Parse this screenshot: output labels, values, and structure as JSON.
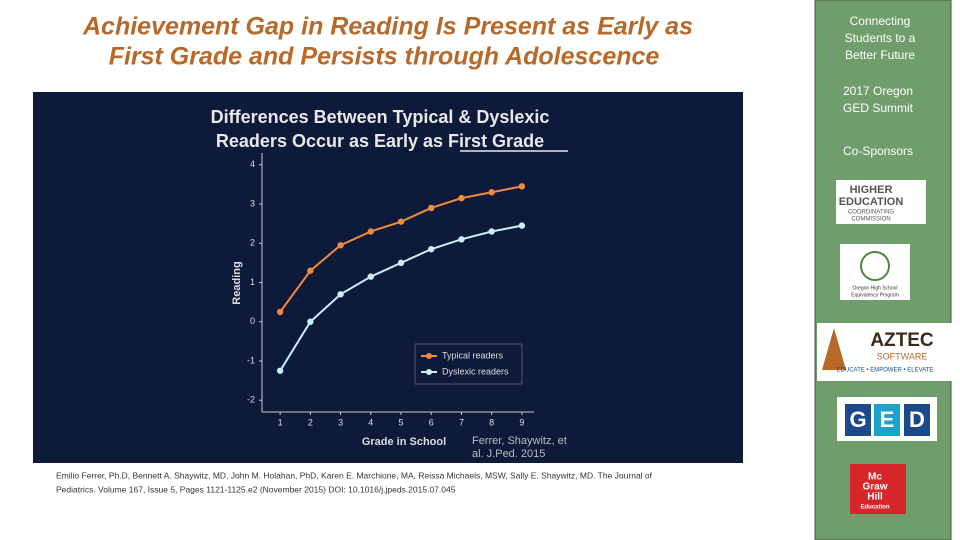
{
  "slide_title": [
    "Achievement Gap in Reading Is Present as Early as",
    "First Grade and Persists through Adolescence"
  ],
  "citation": [
    "Emilio Ferrer, Ph.D, Bennett A. Shaywitz, MD, John M. Holahan, PhD, Karen E. Marchione, MA, Reissa Michaels, MSW, Sally E. Shaywitz, MD. The Journal of",
    "Pediatrics. Volume 167, Issue 5, Pages 1121-1125.e2 (November 2015) DOI: 10.1016/j.jpeds.2015.07.045"
  ],
  "sidebar": {
    "tagline": [
      "Connecting",
      "Students to a",
      "Better Future"
    ],
    "event": [
      "2017 Oregon",
      "GED Summit"
    ],
    "sponsors_heading": "Co-Sponsors",
    "logos": [
      {
        "lines": [
          "HIGHER",
          "EDUCATION",
          "COORDINATING",
          "COMMISSION"
        ]
      },
      {
        "lines": [
          "Oregon High School",
          "Equivalency Program"
        ]
      },
      {
        "lines": [
          "AZTEC",
          "SOFTWARE",
          "EDUCATE • EMPOWER • ELEVATE"
        ]
      },
      {
        "lines": [
          "G",
          "E",
          "D"
        ]
      },
      {
        "lines": [
          "Mc",
          "Graw",
          "Hill",
          "Education"
        ]
      }
    ]
  },
  "chart_data": {
    "type": "line",
    "title": [
      "Differences Between Typical & Dyslexic",
      "Readers Occur as Early as First Grade"
    ],
    "xlabel": "Grade in School",
    "ylabel": "Reading",
    "annotation": [
      "Ferrer, Shaywitz, et",
      "al. J.Ped. 2015"
    ],
    "x": [
      1,
      2,
      3,
      4,
      5,
      6,
      7,
      8,
      9
    ],
    "series": [
      {
        "name": "Typical readers",
        "color": "#f08a3c",
        "values": [
          0.25,
          1.3,
          1.95,
          2.3,
          2.55,
          2.9,
          3.15,
          3.3,
          3.45
        ]
      },
      {
        "name": "Dyslexic readers",
        "color": "#c8f0f8",
        "values": [
          -1.25,
          0,
          0.7,
          1.15,
          1.5,
          1.85,
          2.1,
          2.3,
          2.45
        ]
      }
    ],
    "xlim": [
      0.4,
      9.4
    ],
    "ylim": [
      -2.3,
      4.3
    ],
    "xticks": [
      1,
      2,
      3,
      4,
      5,
      6,
      7,
      8,
      9
    ],
    "yticks": [
      -2,
      -1,
      0,
      1,
      2,
      3,
      4
    ],
    "grid": false,
    "legend": "lower right"
  }
}
